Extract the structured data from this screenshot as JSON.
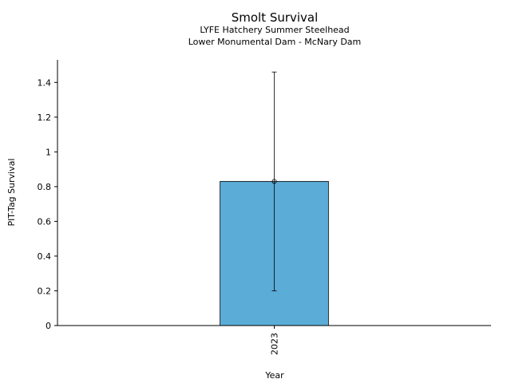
{
  "chart_data": {
    "type": "bar",
    "title": "Smolt Survival",
    "subtitle": [
      "LYFE Hatchery Summer Steelhead",
      "Lower Monumental Dam - McNary Dam"
    ],
    "xlabel": "Year",
    "ylabel": "PIT-Tag Survival",
    "categories": [
      "2023"
    ],
    "series": [
      {
        "values": [
          0.83
        ],
        "error_low": [
          0.2
        ],
        "error_high": [
          1.46
        ],
        "color": "#5bacd6"
      }
    ],
    "ylim": [
      0,
      1.53
    ],
    "yticks": [
      0,
      0.2,
      0.4,
      0.6,
      0.8,
      1,
      1.2,
      1.4
    ],
    "ytick_labels": [
      "0",
      "0.2",
      "0.4",
      "0.6",
      "0.8",
      "1",
      "1.2",
      "1.4"
    ],
    "grid": false,
    "legend": "none"
  }
}
